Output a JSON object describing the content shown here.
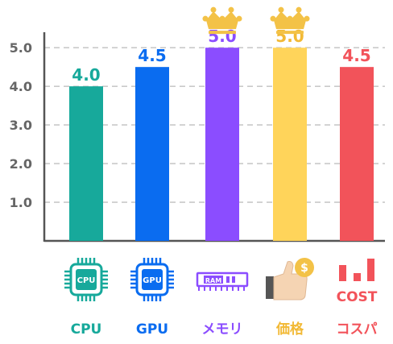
{
  "chart_data": {
    "type": "bar",
    "categories": [
      "CPU",
      "GPU",
      "メモリ",
      "価格",
      "コスパ"
    ],
    "values": [
      4.0,
      4.5,
      5.0,
      5.0,
      4.5
    ],
    "value_labels": [
      "4.0",
      "4.5",
      "5.0",
      "5.0",
      "4.5"
    ],
    "colors": [
      "#17a99b",
      "#0a6cf0",
      "#8b4dff",
      "#ffd45a",
      "#f2535a"
    ],
    "label_colors": [
      "#17a99b",
      "#0a6cf0",
      "#8b4dff",
      "#f2b935",
      "#f2535a"
    ],
    "yticks": [
      "1.0",
      "2.0",
      "3.0",
      "4.0",
      "5.0"
    ],
    "ylim": [
      0,
      5.4
    ],
    "grid": true,
    "crowned": [
      2,
      3
    ],
    "icons": [
      "cpu-chip-icon",
      "gpu-chip-icon",
      "ram-module-icon",
      "price-thumbs-up-coin-icon",
      "cost-bar-icon"
    ],
    "icon_texts": [
      "CPU",
      "GPU",
      "RAM",
      "$",
      "COST"
    ],
    "title": "",
    "xlabel": "",
    "ylabel": ""
  }
}
